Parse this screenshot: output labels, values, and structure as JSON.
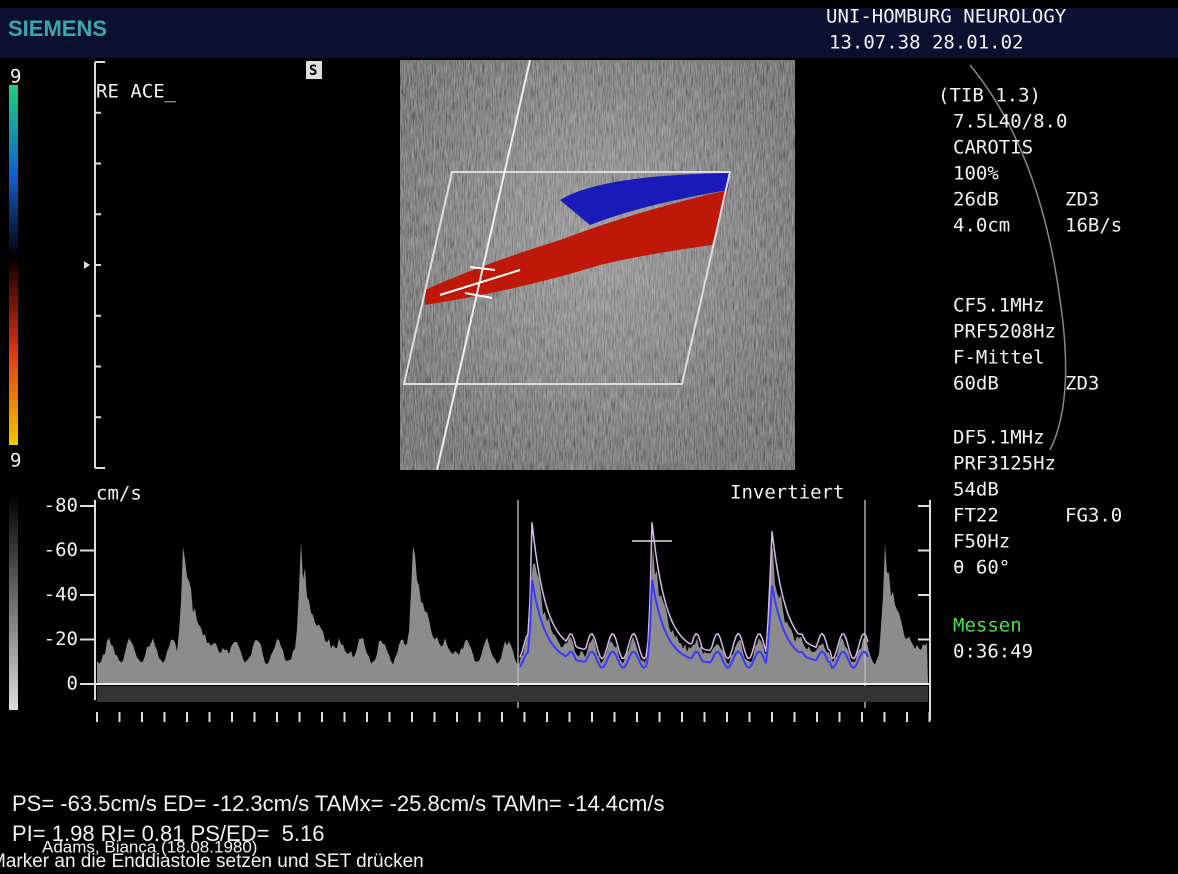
{
  "header": {
    "brand": "SIEMENS",
    "institution": "UNI-HOMBURG NEUROLOGY",
    "datetime": "13.07.38 28.01.02"
  },
  "scale": {
    "top": "9",
    "bottom": "9"
  },
  "image": {
    "label": "RE ACE_",
    "marker": "S"
  },
  "settings": {
    "rows": [
      [
        "(TIB 1.3)"
      ],
      [
        "7.5L40/8.0"
      ],
      [
        "CAROTIS"
      ],
      [
        "100%"
      ],
      [
        "26dB",
        "ZD3"
      ],
      [
        "4.0cm",
        "16B/s"
      ],
      [
        "CF5.1MHz"
      ],
      [
        "PRF5208Hz"
      ],
      [
        "F-Mittel"
      ],
      [
        "60dB",
        "ZD3"
      ],
      [
        "DF5.1MHz"
      ],
      [
        "PRF3125Hz"
      ],
      [
        "54dB"
      ],
      [
        "FT22",
        "FG3.0"
      ],
      [
        "F50Hz"
      ],
      [
        "θ 60°"
      ]
    ],
    "mode": "Messen",
    "time": "0:36:49"
  },
  "doppler": {
    "unit": "cm/s",
    "mode": "Invertiert",
    "ticks": [
      -80,
      -60,
      -40,
      -20,
      0
    ]
  },
  "measurements": {
    "line1": "PS= -63.5cm/s ED= -12.3cm/s TAMx= -25.8cm/s TAMn= -14.4cm/s",
    "line2": "PI= 1.98 RI= 0.81 PS/ED=  5.16"
  },
  "patient": "Adams, Bianca (18.08.1980)",
  "status": "Marker an die Enddiastole setzen und SET drücken"
}
